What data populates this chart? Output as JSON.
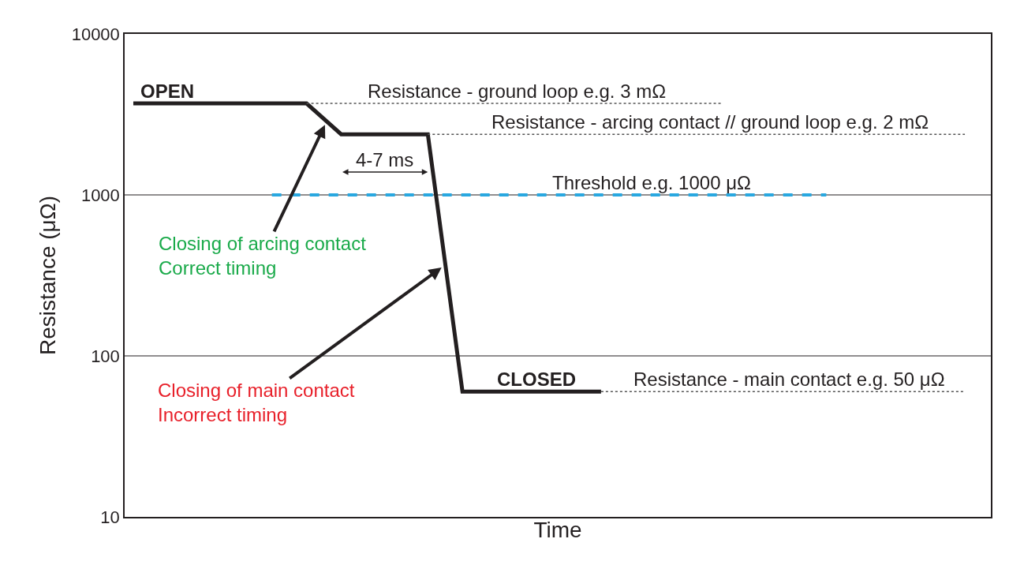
{
  "chart_data": {
    "type": "line",
    "xlabel": "Time",
    "ylabel": "Resistance (μΩ)",
    "log": "y",
    "ref_lines": [
      {
        "axis": "y",
        "value": 1000,
        "color": "#231f20"
      },
      {
        "axis": "y",
        "value": 100,
        "color": "#231f20"
      }
    ],
    "tick_labels": "y",
    "marker": "none",
    "categories": [
      null,
      null,
      null,
      null,
      null,
      null,
      null,
      null,
      null,
      null,
      null,
      null,
      null,
      null,
      null,
      null,
      null,
      null,
      null,
      null,
      null,
      null,
      null,
      null,
      null,
      null,
      null,
      null,
      null,
      null,
      null,
      null,
      null,
      null,
      null,
      null,
      null,
      null,
      null,
      null,
      null,
      null,
      null,
      null,
      null,
      null,
      null,
      null,
      null,
      null
    ],
    "ylim": [
      10,
      10000
    ],
    "yticks": [
      10,
      100,
      1000,
      10000
    ],
    "series": [
      {
        "color": "#231f20",
        "line_style": "solid",
        "values": [
          3700,
          null,
          null,
          null,
          null,
          null,
          null,
          null,
          null,
          null,
          3700,
          null,
          2380,
          null,
          null,
          null,
          null,
          2380,
          null,
          60,
          null,
          null,
          null,
          null,
          null,
          null,
          null,
          60,
          null,
          null,
          null,
          null,
          null,
          null,
          null,
          null,
          null,
          null,
          null,
          null,
          null,
          null,
          null,
          null,
          null,
          null,
          null,
          null,
          null,
          null
        ]
      },
      {
        "color": "#29a8e0",
        "line_style": "dashed",
        "values": [
          null,
          null,
          null,
          null,
          null,
          null,
          null,
          null,
          1000,
          null,
          null,
          null,
          null,
          null,
          null,
          null,
          null,
          null,
          null,
          null,
          null,
          null,
          null,
          null,
          null,
          null,
          null,
          null,
          null,
          null,
          null,
          null,
          null,
          null,
          null,
          null,
          null,
          null,
          null,
          null,
          1000,
          null,
          null,
          null,
          null,
          null,
          null,
          null,
          null,
          null
        ]
      },
      {
        "color": "#555555",
        "line_style": "dotted",
        "values": [
          null,
          null,
          null,
          null,
          null,
          null,
          null,
          null,
          null,
          null,
          3700,
          null,
          null,
          null,
          null,
          null,
          null,
          null,
          null,
          null,
          null,
          null,
          null,
          null,
          null,
          null,
          null,
          null,
          null,
          null,
          null,
          null,
          null,
          null,
          3700,
          null,
          null,
          null,
          null,
          null,
          null,
          null,
          null,
          null,
          null,
          null,
          null,
          null,
          null,
          null
        ]
      },
      {
        "color": "#555555",
        "line_style": "dotted",
        "values": [
          null,
          null,
          null,
          null,
          null,
          null,
          null,
          null,
          null,
          null,
          null,
          null,
          null,
          null,
          null,
          null,
          null,
          2380,
          null,
          null,
          null,
          null,
          null,
          null,
          null,
          null,
          null,
          null,
          null,
          null,
          null,
          null,
          null,
          null,
          null,
          null,
          null,
          null,
          null,
          null,
          null,
          null,
          null,
          null,
          null,
          null,
          null,
          null,
          2380,
          null
        ]
      },
      {
        "color": "#555555",
        "line_style": "dotted",
        "values": [
          null,
          null,
          null,
          null,
          null,
          null,
          null,
          null,
          null,
          null,
          null,
          null,
          null,
          null,
          null,
          null,
          null,
          null,
          null,
          null,
          null,
          null,
          null,
          null,
          null,
          null,
          null,
          60,
          null,
          null,
          null,
          null,
          null,
          null,
          null,
          null,
          null,
          null,
          null,
          null,
          null,
          null,
          null,
          null,
          null,
          null,
          null,
          null,
          60,
          null
        ]
      }
    ],
    "annotations": [
      {
        "text": "OPEN",
        "y": 3700
      },
      {
        "text": "Resistance - ground loop e.g. 3 mΩ",
        "y": 3700
      },
      {
        "text": "Resistance - arcing contact // ground loop e.g. 2 mΩ",
        "y": 2380
      },
      "4-7 ms",
      {
        "text": "Threshold e.g. 1000 μΩ",
        "y": 1000
      },
      "Closing of arcing contact\nCorrect timing",
      "Closing of main contact\nIncorrect timing",
      {
        "text": "CLOSED",
        "y": 60
      },
      {
        "text": "Resistance - main contact e.g. 50 μΩ",
        "y": 60
      }
    ]
  }
}
